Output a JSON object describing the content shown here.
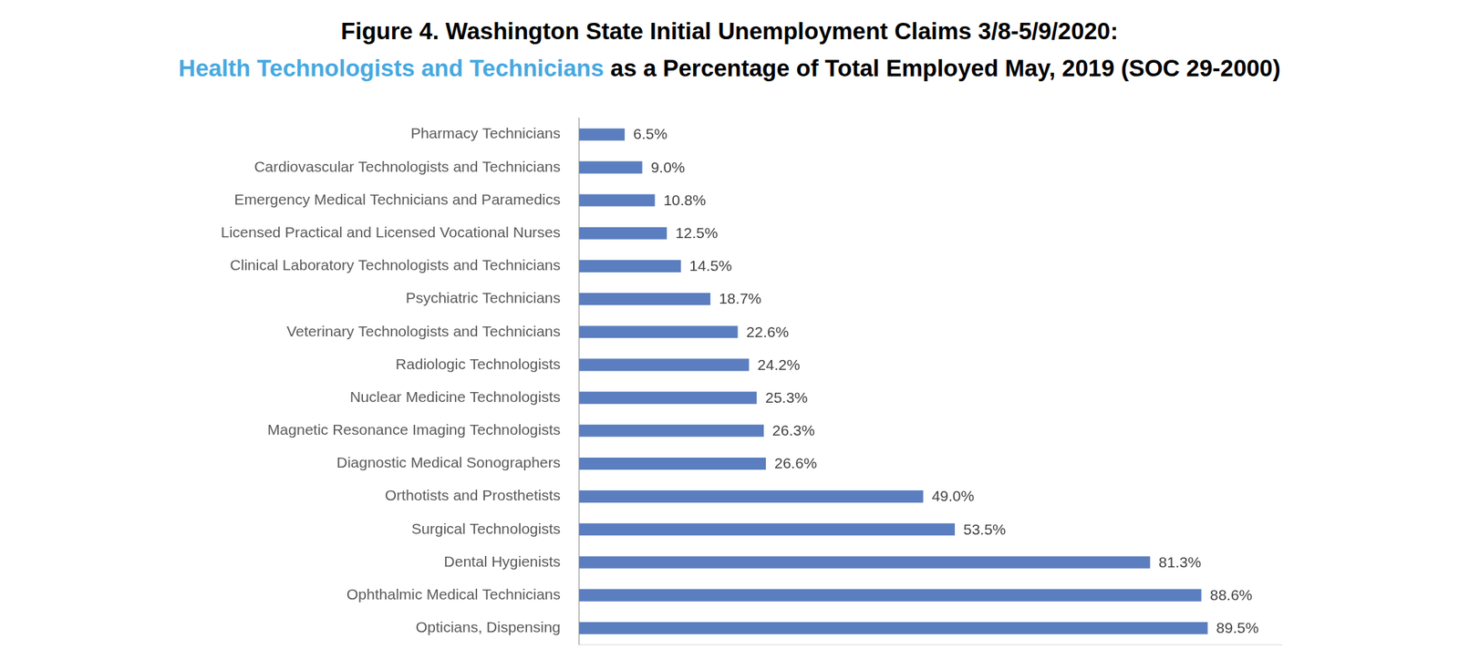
{
  "chart_data": {
    "type": "bar",
    "title": "Figure 4. Washington State Initial Unemployment Claims 3/8-5/9/2020:",
    "subtitle": [
      {
        "text": "Health Technologists and Technicians",
        "color": "#47a9e0"
      },
      {
        "text": " as a Percentage of Total Employed May, 2019 (SOC 29-2000)",
        "color": "#000000"
      }
    ],
    "orientation": "horizontal",
    "categories": [
      "Pharmacy Technicians",
      "Cardiovascular Technologists and Technicians",
      "Emergency Medical Technicians and Paramedics",
      "Licensed Practical and Licensed Vocational Nurses",
      "Clinical Laboratory Technologists and Technicians",
      "Psychiatric Technicians",
      "Veterinary Technologists and Technicians",
      "Radiologic Technologists",
      "Nuclear Medicine Technologists",
      "Magnetic Resonance Imaging Technologists",
      "Diagnostic Medical Sonographers",
      "Orthotists and Prosthetists",
      "Surgical Technologists",
      "Dental Hygienists",
      "Ophthalmic Medical Technicians",
      "Opticians, Dispensing"
    ],
    "values": [
      6.5,
      9.0,
      10.8,
      12.5,
      14.5,
      18.7,
      22.6,
      24.2,
      25.3,
      26.3,
      26.6,
      49.0,
      53.5,
      81.3,
      88.6,
      89.5
    ],
    "value_labels": [
      "6.5%",
      "9.0%",
      "10.8%",
      "12.5%",
      "14.5%",
      "18.7%",
      "22.6%",
      "24.2%",
      "25.3%",
      "26.3%",
      "26.6%",
      "49.0%",
      "53.5%",
      "81.3%",
      "88.6%",
      "89.5%"
    ],
    "color": "#5a7ebf",
    "xlim": [
      0,
      100
    ],
    "grid": false,
    "data_labels": true,
    "tick_labels": "y"
  }
}
